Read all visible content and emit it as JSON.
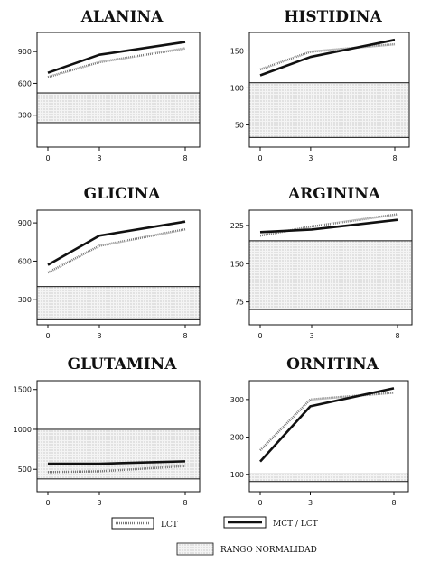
{
  "chart_data": [
    {
      "type": "line",
      "title": "ALANINA",
      "x": [
        0,
        3,
        8
      ],
      "xticks": [
        "0",
        "3",
        "8"
      ],
      "ylim": [
        0,
        1080
      ],
      "yticks": [
        300,
        600,
        900
      ],
      "normal_range": [
        230,
        510
      ],
      "series": [
        {
          "name": "LCT",
          "values": [
            660,
            800,
            930
          ]
        },
        {
          "name": "MCT / LCT",
          "values": [
            700,
            870,
            990
          ]
        }
      ]
    },
    {
      "type": "line",
      "title": "HISTIDINA",
      "x": [
        0,
        3,
        8
      ],
      "xticks": [
        "0",
        "3",
        "8"
      ],
      "ylim": [
        20,
        175
      ],
      "yticks": [
        50,
        100,
        150
      ],
      "normal_range": [
        33,
        107
      ],
      "series": [
        {
          "name": "LCT",
          "values": [
            125,
            149,
            159
          ]
        },
        {
          "name": "MCT / LCT",
          "values": [
            117,
            142,
            165
          ]
        }
      ]
    },
    {
      "type": "line",
      "title": "GLICINA",
      "x": [
        0,
        3,
        8
      ],
      "xticks": [
        "0",
        "3",
        "8"
      ],
      "ylim": [
        100,
        1000
      ],
      "yticks": [
        300,
        600,
        900
      ],
      "normal_range": [
        140,
        400
      ],
      "series": [
        {
          "name": "LCT",
          "values": [
            510,
            720,
            850
          ]
        },
        {
          "name": "MCT / LCT",
          "values": [
            570,
            800,
            910
          ]
        }
      ]
    },
    {
      "type": "line",
      "title": "ARGININA",
      "x": [
        0,
        3,
        8
      ],
      "xticks": [
        "0",
        "3",
        "8"
      ],
      "ylim": [
        30,
        255
      ],
      "yticks": [
        75,
        150,
        225
      ],
      "normal_range": [
        60,
        195
      ],
      "series": [
        {
          "name": "LCT",
          "values": [
            205,
            223,
            247
          ]
        },
        {
          "name": "MCT / LCT",
          "values": [
            212,
            217,
            236
          ]
        }
      ]
    },
    {
      "type": "line",
      "title": "GLUTAMINA",
      "x": [
        0,
        3,
        8
      ],
      "xticks": [
        "0",
        "3",
        "8"
      ],
      "ylim": [
        220,
        1610
      ],
      "yticks": [
        500,
        1000,
        1500
      ],
      "normal_range": [
        380,
        1000
      ],
      "series": [
        {
          "name": "LCT",
          "values": [
            465,
            475,
            540
          ]
        },
        {
          "name": "MCT / LCT",
          "values": [
            570,
            570,
            600
          ]
        }
      ]
    },
    {
      "type": "line",
      "title": "ORNITINA",
      "x": [
        0,
        3,
        8
      ],
      "xticks": [
        "0",
        "3",
        "8"
      ],
      "ylim": [
        55,
        350
      ],
      "yticks": [
        100,
        200,
        300
      ],
      "normal_range": [
        82,
        102
      ],
      "series": [
        {
          "name": "LCT",
          "values": [
            165,
            300,
            318
          ]
        },
        {
          "name": "MCT / LCT",
          "values": [
            135,
            282,
            330
          ]
        }
      ]
    }
  ],
  "legend": {
    "lct": "LCT",
    "mct_lct": "MCT / LCT",
    "normal_range": "RANGO NORMALIDAD"
  }
}
